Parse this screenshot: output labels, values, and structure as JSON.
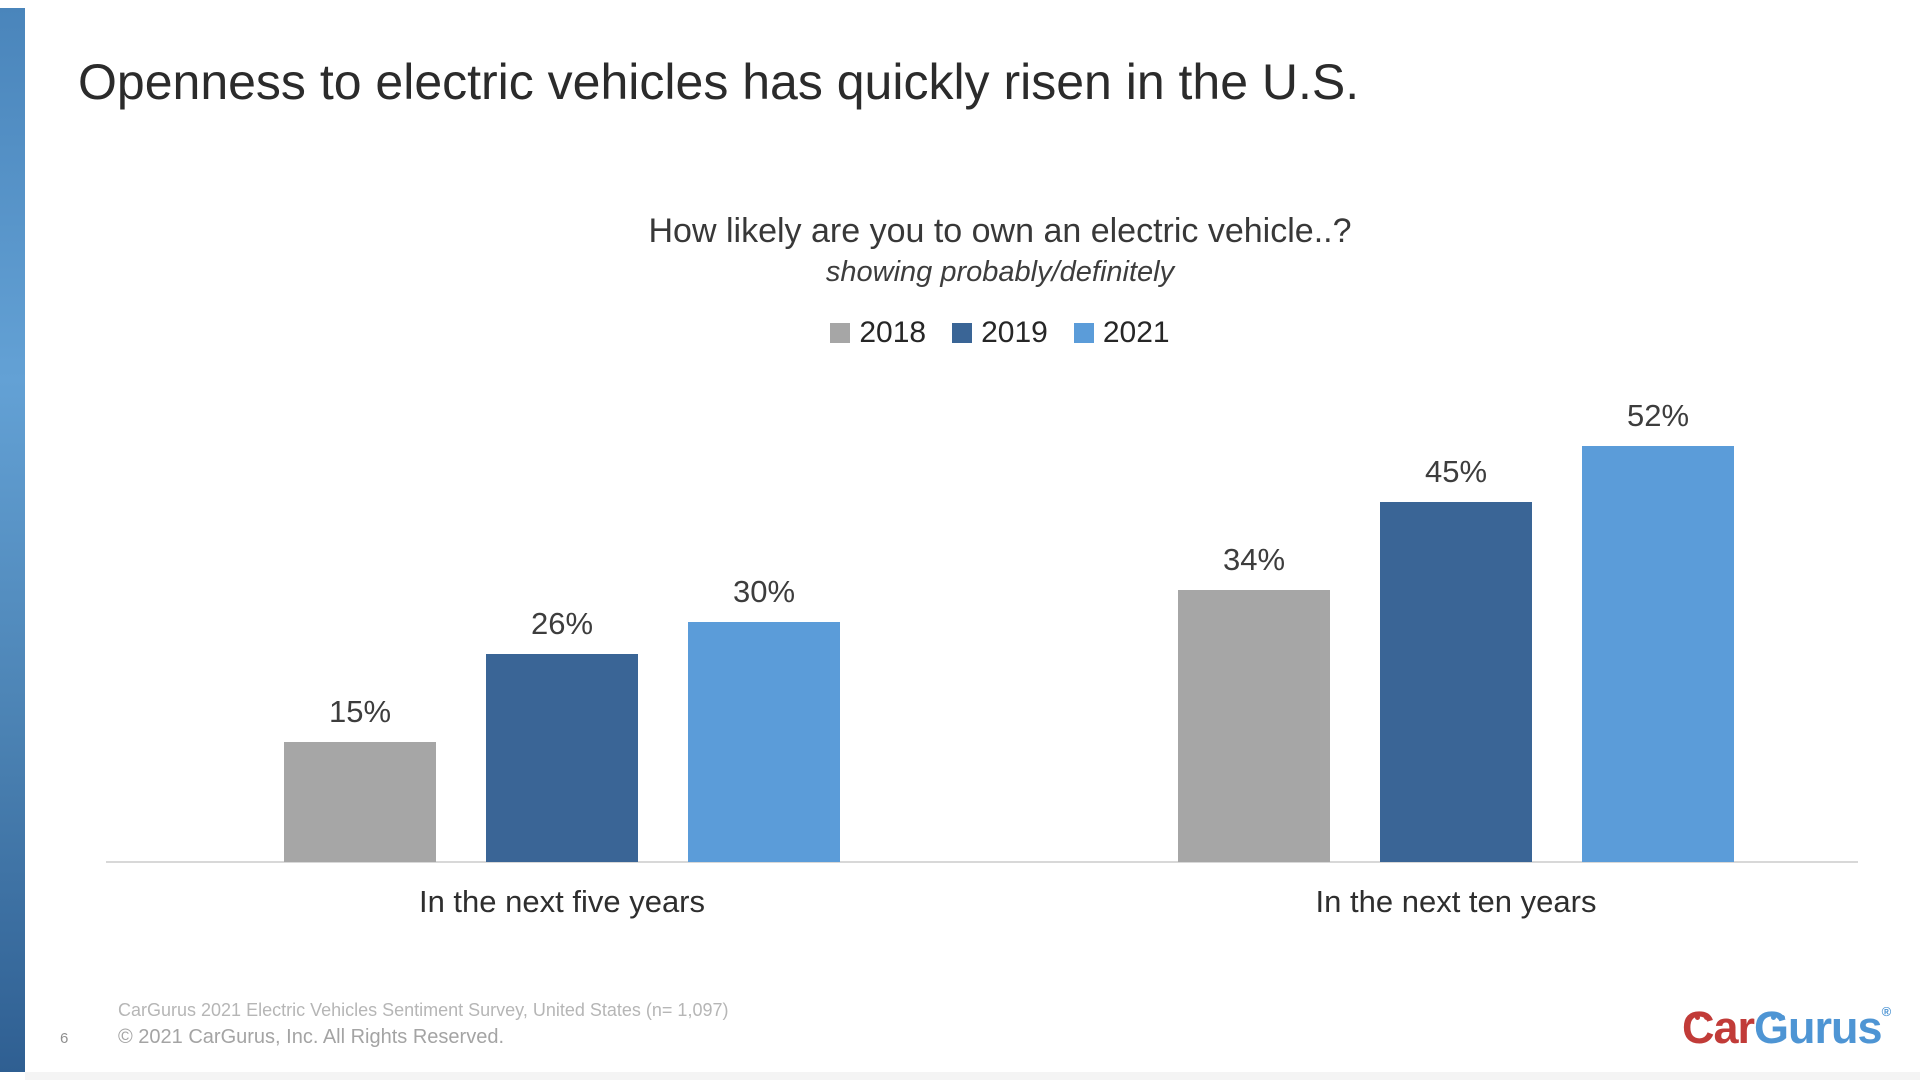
{
  "slide": {
    "title": "Openness to electric vehicles has quickly risen in the U.S.",
    "page_number": "6",
    "footer": {
      "source": "CarGurus 2021 Electric Vehicles Sentiment Survey, United States (n= 1,097)",
      "copyright": "© 2021 CarGurus, Inc.  All Rights Reserved."
    },
    "logo": {
      "part1": "Car",
      "part2": "Gurus",
      "registered": "®"
    }
  },
  "chart_data": {
    "type": "bar",
    "title": "How likely are you to own an electric vehicle..?",
    "subtitle": "showing probably/definitely",
    "categories": [
      "In the next five years",
      "In the next ten years"
    ],
    "series": [
      {
        "name": "2018",
        "color": "#a6a6a6",
        "values": [
          15,
          34
        ]
      },
      {
        "name": "2019",
        "color": "#3a6596",
        "values": [
          26,
          45
        ]
      },
      {
        "name": "2021",
        "color": "#5b9cd9",
        "values": [
          30,
          52
        ]
      }
    ],
    "value_suffix": "%",
    "ylim": [
      0,
      60
    ],
    "grid": false,
    "legend_position": "top",
    "data_labels": true,
    "axis_line_color": "#d8d8d8"
  }
}
